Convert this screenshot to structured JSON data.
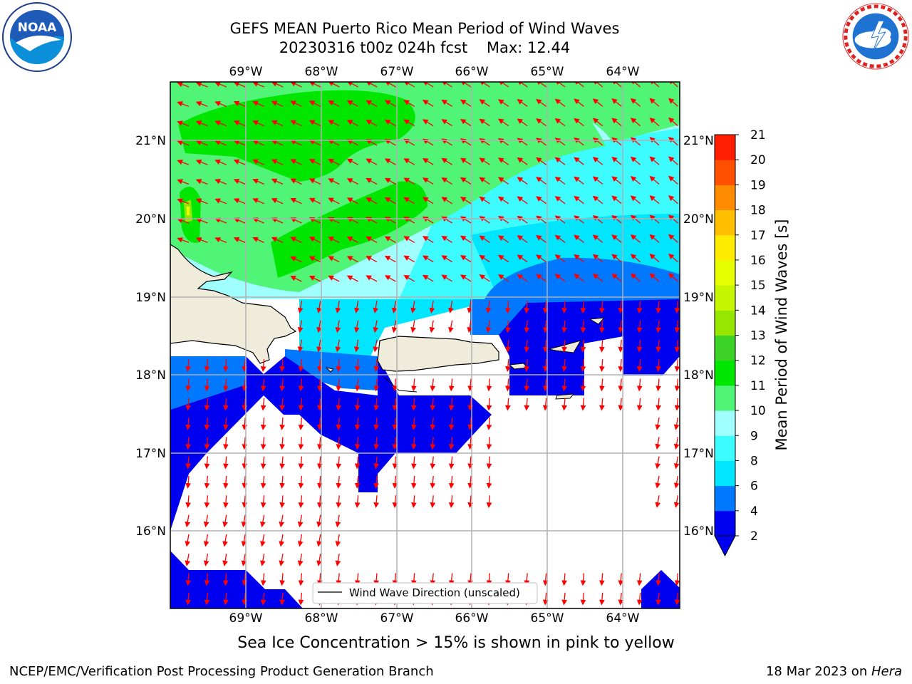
{
  "header": {
    "title_line1": "GEFS MEAN Puerto Rico Mean Period of Wind Waves",
    "title_line2": "20230316 t00z 024h fcst    Max: 12.44"
  },
  "logos": {
    "left": "noaa-logo",
    "right": "nws-logo"
  },
  "map": {
    "lon_ticks": [
      "69°W",
      "68°W",
      "67°W",
      "66°W",
      "65°W",
      "64°W"
    ],
    "lat_ticks": [
      "21°N",
      "20°N",
      "19°N",
      "18°N",
      "17°N",
      "16°N"
    ],
    "legend_label": "Wind Wave Direction (unscaled)",
    "extent": {
      "lon": [
        -70.0,
        -63.25
      ],
      "lat": [
        15.0,
        21.75
      ]
    },
    "arrow_color": "#ff0000",
    "land_color": "#efecdc"
  },
  "colorbar": {
    "label": "Mean Period of Wind Waves [s]",
    "ticks": [
      "2",
      "4",
      "6",
      "8",
      "9",
      "10",
      "11",
      "12",
      "13",
      "14",
      "15",
      "16",
      "17",
      "18",
      "19",
      "20",
      "21"
    ],
    "levels": [
      2,
      4,
      6,
      8,
      9,
      10,
      11,
      12,
      13,
      14,
      15,
      16,
      17,
      18,
      19,
      20,
      21
    ],
    "colors": [
      "#0000f0",
      "#0078ff",
      "#00e6ff",
      "#3cfcff",
      "#a0ffff",
      "#50f578",
      "#00e600",
      "#3cd228",
      "#96e600",
      "#c8f500",
      "#e6ff00",
      "#ffeb00",
      "#ffbe00",
      "#ff8c00",
      "#ff5000",
      "#ff1e00"
    ],
    "under_color": "#0000f0"
  },
  "footer": {
    "sea_ice_note": "Sea Ice Concentration > 15% is shown in pink to yellow",
    "credit": "NCEP/EMC/Verification Post Processing Product Generation Branch",
    "date_text": "18 Mar 2023 on ",
    "machine": "Hera"
  }
}
